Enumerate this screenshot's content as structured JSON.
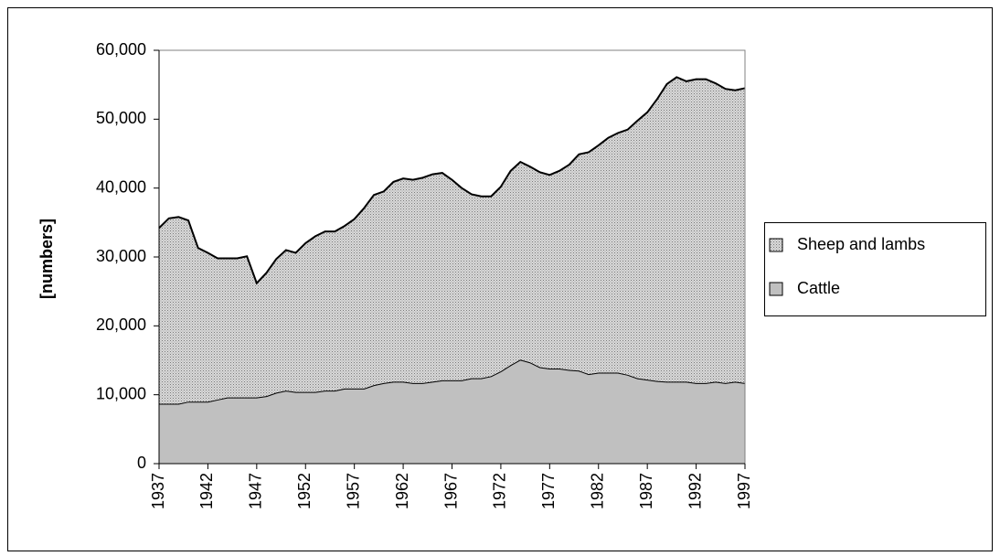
{
  "chart_data": {
    "type": "stacked_area",
    "y_label": "[numbers]",
    "x": [
      1937,
      1938,
      1939,
      1940,
      1941,
      1942,
      1943,
      1944,
      1945,
      1946,
      1947,
      1948,
      1949,
      1950,
      1951,
      1952,
      1953,
      1954,
      1955,
      1956,
      1957,
      1958,
      1959,
      1960,
      1961,
      1962,
      1963,
      1964,
      1965,
      1966,
      1967,
      1968,
      1969,
      1970,
      1971,
      1972,
      1973,
      1974,
      1975,
      1976,
      1977,
      1978,
      1979,
      1980,
      1981,
      1982,
      1983,
      1984,
      1985,
      1986,
      1987,
      1988,
      1989,
      1990,
      1991,
      1992,
      1993,
      1994,
      1995,
      1996,
      1997
    ],
    "series": [
      {
        "name": "Cattle",
        "color": "#c0c0c0",
        "values": [
          8700,
          8700,
          8700,
          9000,
          9000,
          9000,
          9300,
          9600,
          9600,
          9600,
          9600,
          9800,
          10300,
          10600,
          10400,
          10400,
          10400,
          10600,
          10600,
          10900,
          10900,
          10900,
          11400,
          11700,
          11900,
          11900,
          11700,
          11700,
          11900,
          12100,
          12100,
          12100,
          12400,
          12400,
          12700,
          13400,
          14300,
          15100,
          14700,
          14000,
          13800,
          13800,
          13600,
          13500,
          13000,
          13200,
          13200,
          13200,
          12900,
          12400,
          12200,
          12000,
          11900,
          11900,
          11900,
          11700,
          11700,
          11900,
          11700,
          11900,
          11700
        ]
      },
      {
        "name": "Sheep and lambs",
        "color": "#d9d9d9",
        "values": [
          25500,
          26900,
          27100,
          26300,
          22300,
          21600,
          20500,
          20200,
          20200,
          20500,
          16600,
          17900,
          19400,
          20400,
          20200,
          21600,
          22600,
          23100,
          23100,
          23600,
          24600,
          26200,
          27600,
          27800,
          29000,
          29500,
          29500,
          29800,
          30100,
          30100,
          29100,
          27900,
          26700,
          26400,
          26100,
          26800,
          28200,
          28700,
          28400,
          28300,
          28100,
          28700,
          29800,
          31400,
          32200,
          33000,
          34100,
          34800,
          35600,
          37400,
          38800,
          40900,
          43200,
          44200,
          43600,
          44100,
          44100,
          43300,
          42700,
          42300,
          42800
        ]
      }
    ],
    "xlim": [
      1937,
      1997
    ],
    "xticks": [
      1937,
      1942,
      1947,
      1952,
      1957,
      1962,
      1967,
      1972,
      1977,
      1982,
      1987,
      1992,
      1997
    ],
    "ylim": [
      0,
      60000
    ],
    "yticks": [
      0,
      {
        "value": 10000,
        "label": "10,000"
      },
      {
        "value": 20000,
        "label": "20,000"
      },
      {
        "value": 30000,
        "label": "30,000"
      },
      {
        "value": 40000,
        "label": "40,000"
      },
      {
        "value": 50000,
        "label": "50,000"
      },
      {
        "value": 60000,
        "label": "60,000"
      }
    ],
    "legend": "right"
  }
}
